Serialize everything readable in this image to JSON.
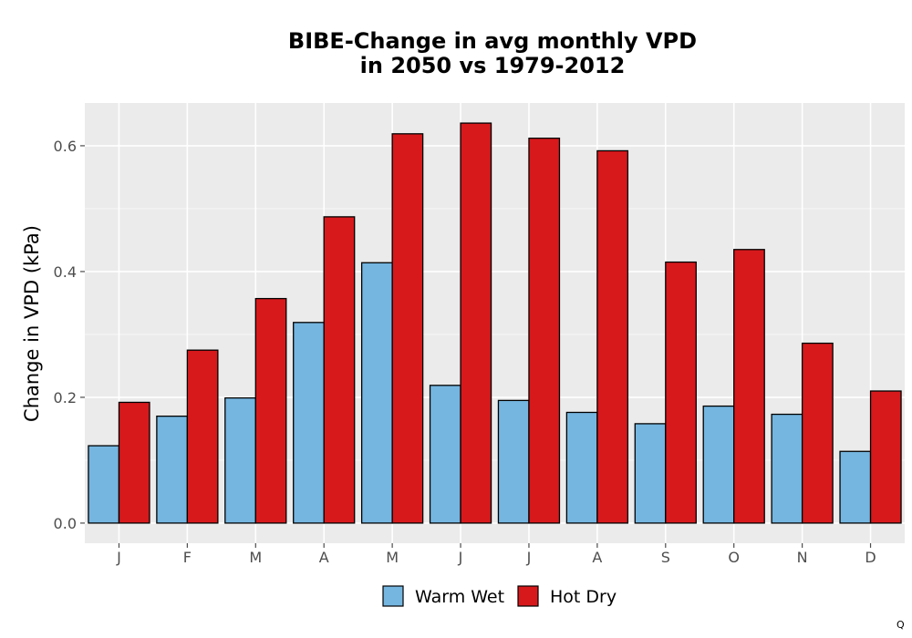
{
  "chart_data": {
    "type": "bar",
    "title_lines": [
      "BIBE-Change in avg monthly VPD",
      "in 2050 vs 1979-2012"
    ],
    "xlabel": "",
    "ylabel": "Change in VPD (kPa)",
    "categories": [
      "J",
      "F",
      "M",
      "A",
      "M",
      "J",
      "J",
      "A",
      "S",
      "O",
      "N",
      "D"
    ],
    "series": [
      {
        "name": "Warm Wet",
        "color": "#74b6e0",
        "values": [
          0.123,
          0.17,
          0.199,
          0.319,
          0.414,
          0.219,
          0.195,
          0.176,
          0.158,
          0.186,
          0.173,
          0.114
        ]
      },
      {
        "name": "Hot Dry",
        "color": "#d7191c",
        "values": [
          0.192,
          0.275,
          0.357,
          0.487,
          0.619,
          0.636,
          0.612,
          0.592,
          0.415,
          0.435,
          0.286,
          0.21
        ]
      }
    ],
    "yticks": [
      0.0,
      0.2,
      0.4,
      0.6
    ],
    "ytick_labels": [
      "0.0",
      "0.2",
      "0.4",
      "0.6"
    ],
    "ylim": [
      -0.032,
      0.668
    ],
    "grid": true,
    "legend_position": "bottom",
    "corner_mark": "Q"
  }
}
